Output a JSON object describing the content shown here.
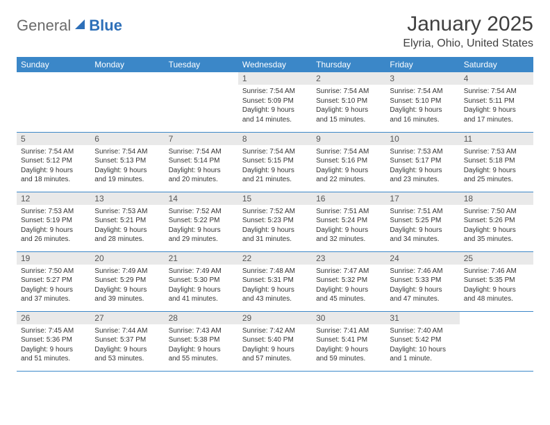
{
  "logo": {
    "general": "General",
    "blue": "Blue"
  },
  "title": "January 2025",
  "location": "Elyria, Ohio, United States",
  "colors": {
    "header_bg": "#3b87c8",
    "header_text": "#ffffff",
    "daynum_bg": "#e9e9e9",
    "border": "#3b87c8",
    "logo_gray": "#6a6a6a",
    "logo_blue": "#2d6fb8"
  },
  "day_headers": [
    "Sunday",
    "Monday",
    "Tuesday",
    "Wednesday",
    "Thursday",
    "Friday",
    "Saturday"
  ],
  "weeks": [
    [
      null,
      null,
      null,
      {
        "n": "1",
        "sr": "Sunrise: 7:54 AM",
        "ss": "Sunset: 5:09 PM",
        "dl": "Daylight: 9 hours and 14 minutes."
      },
      {
        "n": "2",
        "sr": "Sunrise: 7:54 AM",
        "ss": "Sunset: 5:10 PM",
        "dl": "Daylight: 9 hours and 15 minutes."
      },
      {
        "n": "3",
        "sr": "Sunrise: 7:54 AM",
        "ss": "Sunset: 5:10 PM",
        "dl": "Daylight: 9 hours and 16 minutes."
      },
      {
        "n": "4",
        "sr": "Sunrise: 7:54 AM",
        "ss": "Sunset: 5:11 PM",
        "dl": "Daylight: 9 hours and 17 minutes."
      }
    ],
    [
      {
        "n": "5",
        "sr": "Sunrise: 7:54 AM",
        "ss": "Sunset: 5:12 PM",
        "dl": "Daylight: 9 hours and 18 minutes."
      },
      {
        "n": "6",
        "sr": "Sunrise: 7:54 AM",
        "ss": "Sunset: 5:13 PM",
        "dl": "Daylight: 9 hours and 19 minutes."
      },
      {
        "n": "7",
        "sr": "Sunrise: 7:54 AM",
        "ss": "Sunset: 5:14 PM",
        "dl": "Daylight: 9 hours and 20 minutes."
      },
      {
        "n": "8",
        "sr": "Sunrise: 7:54 AM",
        "ss": "Sunset: 5:15 PM",
        "dl": "Daylight: 9 hours and 21 minutes."
      },
      {
        "n": "9",
        "sr": "Sunrise: 7:54 AM",
        "ss": "Sunset: 5:16 PM",
        "dl": "Daylight: 9 hours and 22 minutes."
      },
      {
        "n": "10",
        "sr": "Sunrise: 7:53 AM",
        "ss": "Sunset: 5:17 PM",
        "dl": "Daylight: 9 hours and 23 minutes."
      },
      {
        "n": "11",
        "sr": "Sunrise: 7:53 AM",
        "ss": "Sunset: 5:18 PM",
        "dl": "Daylight: 9 hours and 25 minutes."
      }
    ],
    [
      {
        "n": "12",
        "sr": "Sunrise: 7:53 AM",
        "ss": "Sunset: 5:19 PM",
        "dl": "Daylight: 9 hours and 26 minutes."
      },
      {
        "n": "13",
        "sr": "Sunrise: 7:53 AM",
        "ss": "Sunset: 5:21 PM",
        "dl": "Daylight: 9 hours and 28 minutes."
      },
      {
        "n": "14",
        "sr": "Sunrise: 7:52 AM",
        "ss": "Sunset: 5:22 PM",
        "dl": "Daylight: 9 hours and 29 minutes."
      },
      {
        "n": "15",
        "sr": "Sunrise: 7:52 AM",
        "ss": "Sunset: 5:23 PM",
        "dl": "Daylight: 9 hours and 31 minutes."
      },
      {
        "n": "16",
        "sr": "Sunrise: 7:51 AM",
        "ss": "Sunset: 5:24 PM",
        "dl": "Daylight: 9 hours and 32 minutes."
      },
      {
        "n": "17",
        "sr": "Sunrise: 7:51 AM",
        "ss": "Sunset: 5:25 PM",
        "dl": "Daylight: 9 hours and 34 minutes."
      },
      {
        "n": "18",
        "sr": "Sunrise: 7:50 AM",
        "ss": "Sunset: 5:26 PM",
        "dl": "Daylight: 9 hours and 35 minutes."
      }
    ],
    [
      {
        "n": "19",
        "sr": "Sunrise: 7:50 AM",
        "ss": "Sunset: 5:27 PM",
        "dl": "Daylight: 9 hours and 37 minutes."
      },
      {
        "n": "20",
        "sr": "Sunrise: 7:49 AM",
        "ss": "Sunset: 5:29 PM",
        "dl": "Daylight: 9 hours and 39 minutes."
      },
      {
        "n": "21",
        "sr": "Sunrise: 7:49 AM",
        "ss": "Sunset: 5:30 PM",
        "dl": "Daylight: 9 hours and 41 minutes."
      },
      {
        "n": "22",
        "sr": "Sunrise: 7:48 AM",
        "ss": "Sunset: 5:31 PM",
        "dl": "Daylight: 9 hours and 43 minutes."
      },
      {
        "n": "23",
        "sr": "Sunrise: 7:47 AM",
        "ss": "Sunset: 5:32 PM",
        "dl": "Daylight: 9 hours and 45 minutes."
      },
      {
        "n": "24",
        "sr": "Sunrise: 7:46 AM",
        "ss": "Sunset: 5:33 PM",
        "dl": "Daylight: 9 hours and 47 minutes."
      },
      {
        "n": "25",
        "sr": "Sunrise: 7:46 AM",
        "ss": "Sunset: 5:35 PM",
        "dl": "Daylight: 9 hours and 48 minutes."
      }
    ],
    [
      {
        "n": "26",
        "sr": "Sunrise: 7:45 AM",
        "ss": "Sunset: 5:36 PM",
        "dl": "Daylight: 9 hours and 51 minutes."
      },
      {
        "n": "27",
        "sr": "Sunrise: 7:44 AM",
        "ss": "Sunset: 5:37 PM",
        "dl": "Daylight: 9 hours and 53 minutes."
      },
      {
        "n": "28",
        "sr": "Sunrise: 7:43 AM",
        "ss": "Sunset: 5:38 PM",
        "dl": "Daylight: 9 hours and 55 minutes."
      },
      {
        "n": "29",
        "sr": "Sunrise: 7:42 AM",
        "ss": "Sunset: 5:40 PM",
        "dl": "Daylight: 9 hours and 57 minutes."
      },
      {
        "n": "30",
        "sr": "Sunrise: 7:41 AM",
        "ss": "Sunset: 5:41 PM",
        "dl": "Daylight: 9 hours and 59 minutes."
      },
      {
        "n": "31",
        "sr": "Sunrise: 7:40 AM",
        "ss": "Sunset: 5:42 PM",
        "dl": "Daylight: 10 hours and 1 minute."
      },
      null
    ]
  ]
}
